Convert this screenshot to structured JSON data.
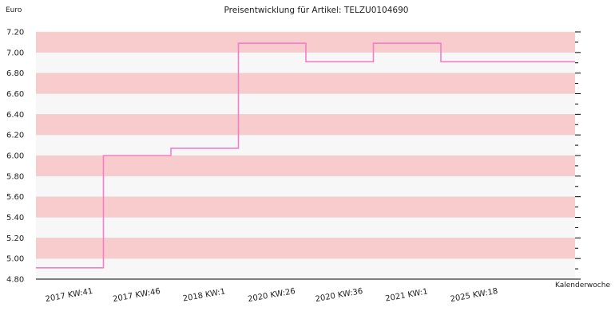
{
  "chart_data": {
    "type": "line",
    "step": true,
    "title": "Preisentwicklung für Artikel: TELZU0104690",
    "ylabel": "Euro",
    "xlabel": "Kalenderwoche",
    "ylim": [
      4.8,
      7.2
    ],
    "yticks": [
      "4.80",
      "5.00",
      "5.20",
      "5.40",
      "5.60",
      "5.80",
      "6.00",
      "6.20",
      "6.40",
      "6.60",
      "6.80",
      "7.00",
      "7.20"
    ],
    "categories": [
      "2017 KW:41",
      "2017 KW:46",
      "2018 KW:1",
      "2020 KW:26",
      "2020 KW:36",
      "2021 KW:1",
      "2025 KW:18"
    ],
    "series": [
      {
        "values": [
          4.91,
          6.0,
          6.07,
          7.09,
          6.91,
          7.09,
          6.91
        ]
      }
    ],
    "grid": "alternating horizontal bands",
    "colors": {
      "line": "#f47fc8",
      "band": "#f8cccc",
      "band_alt": "#f7f7f7",
      "axis": "#000000"
    }
  }
}
